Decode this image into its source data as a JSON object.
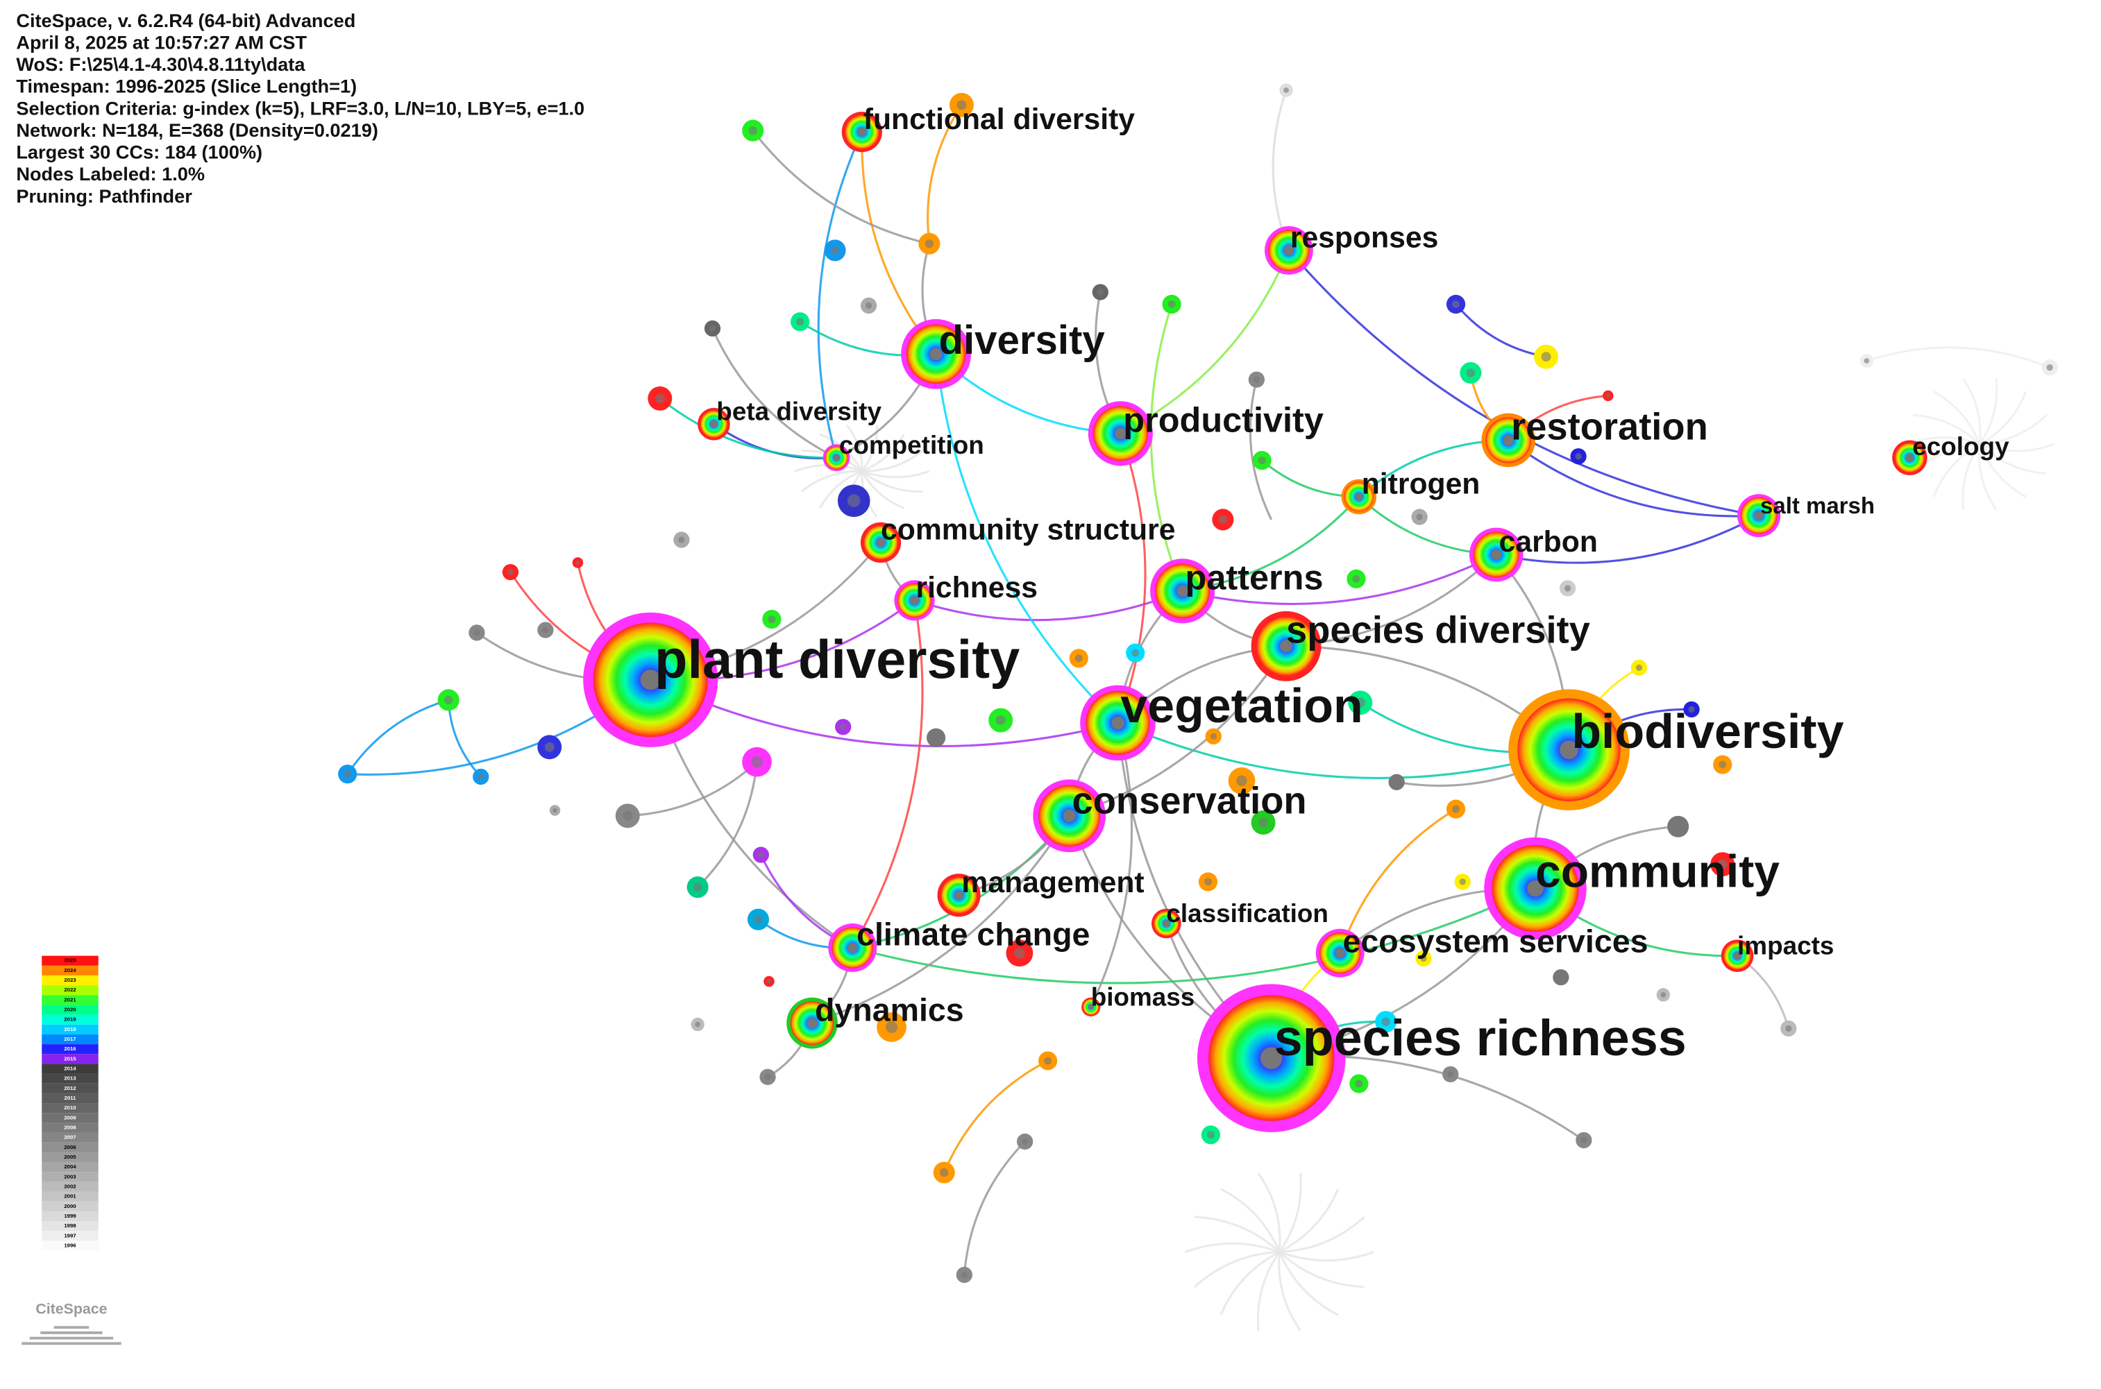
{
  "header": {
    "lines": [
      "CiteSpace, v. 6.2.R4 (64-bit) Advanced",
      "April 8, 2025 at 10:57:27 AM CST",
      "WoS: F:\\25\\4.1-4.30\\4.8.11ty\\data",
      "Timespan: 1996-2025 (Slice Length=1)",
      "Selection Criteria: g-index (k=5), LRF=3.0, L/N=10, LBY=5, e=1.0",
      "Network: N=184, E=368 (Density=0.0219)",
      "Largest 30 CCs: 184 (100%)",
      "Nodes Labeled: 1.0%",
      "Pruning: Pathfinder"
    ]
  },
  "nodes": [
    {
      "label": "functional diversity"
    },
    {
      "label": "responses"
    },
    {
      "label": "diversity"
    },
    {
      "label": "beta diversity"
    },
    {
      "label": "competition"
    },
    {
      "label": "productivity"
    },
    {
      "label": "restoration"
    },
    {
      "label": "ecology"
    },
    {
      "label": "salt marsh"
    },
    {
      "label": "nitrogen"
    },
    {
      "label": "community structure"
    },
    {
      "label": "carbon"
    },
    {
      "label": "patterns"
    },
    {
      "label": "richness"
    },
    {
      "label": "species diversity"
    },
    {
      "label": "plant diversity"
    },
    {
      "label": "vegetation"
    },
    {
      "label": "biodiversity"
    },
    {
      "label": "conservation"
    },
    {
      "label": "community"
    },
    {
      "label": "management"
    },
    {
      "label": "classification"
    },
    {
      "label": "climate change"
    },
    {
      "label": "ecosystem services"
    },
    {
      "label": "impacts"
    },
    {
      "label": "biomass"
    },
    {
      "label": "dynamics"
    },
    {
      "label": "species richness"
    }
  ],
  "legend": {
    "years": [
      "2025",
      "2024",
      "2023",
      "2022",
      "2021",
      "2020",
      "2019",
      "2018",
      "2017",
      "2016",
      "2015",
      "2014",
      "2013",
      "2012",
      "2011",
      "2010",
      "2009",
      "2008",
      "2007",
      "2006",
      "2005",
      "2004",
      "2003",
      "2002",
      "2001",
      "2000",
      "1999",
      "1998",
      "1997",
      "1996"
    ]
  },
  "logo": "CiteSpace"
}
